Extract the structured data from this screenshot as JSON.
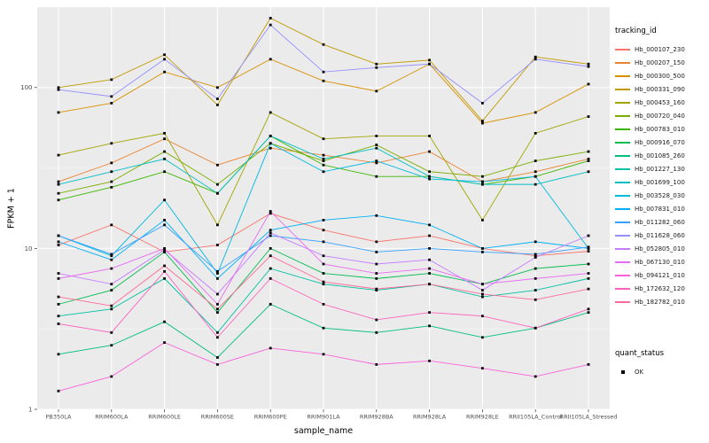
{
  "figure": {
    "bg": "#FFFFFF",
    "panel_bg": "#EBEBEB",
    "grid_major_color": "#FFFFFF",
    "grid_minor_color": "#FFFFFF",
    "tick_color": "#333333",
    "tick_label_color": "#4D4D4D",
    "point_color": "#000000"
  },
  "chart_data": {
    "type": "line",
    "title": "",
    "xlabel": "sample_name",
    "ylabel": "FPKM + 1",
    "y_scale": "log10",
    "y_ticks": [
      1,
      10,
      100
    ],
    "ylim": [
      1,
      316.23
    ],
    "grid": true,
    "legend_position": "right",
    "categories": [
      "PB350LA",
      "RRIM600LA",
      "RRIM600LE",
      "RRIM600SE",
      "RRIM600PE",
      "RRIM901LA",
      "RRIM928BA",
      "RRIM928LA",
      "RRIM928LE",
      "RRII105LA_Control",
      "RRII105LA_Stressed"
    ],
    "legend": {
      "color_title": "tracking_id",
      "shape_title": "quant_status",
      "shape_items": [
        {
          "label": "OK",
          "shape": "square",
          "color": "#000000"
        }
      ]
    },
    "series": [
      {
        "name": "Hb_000107_230",
        "color": "#F8766D",
        "values": [
          10.5,
          14,
          9.5,
          10.5,
          16.5,
          13,
          11,
          12,
          10,
          9,
          9.6
        ]
      },
      {
        "name": "Hb_000207_150",
        "color": "#EA8331",
        "values": [
          26,
          34,
          48,
          33,
          42,
          38,
          34,
          40,
          26,
          30,
          36
        ]
      },
      {
        "name": "Hb_000300_500",
        "color": "#D89000",
        "values": [
          70,
          80,
          125,
          100,
          150,
          110,
          95,
          140,
          60,
          70,
          105
        ]
      },
      {
        "name": "Hb_000331_090",
        "color": "#C09B00",
        "values": [
          100,
          112,
          160,
          78,
          270,
          185,
          140,
          148,
          62,
          155,
          140
        ]
      },
      {
        "name": "Hb_000453_160",
        "color": "#A3A500",
        "values": [
          38,
          45,
          52,
          14,
          70,
          48,
          50,
          50,
          15,
          52,
          66
        ]
      },
      {
        "name": "Hb_000720_040",
        "color": "#7CAE00",
        "values": [
          22,
          26,
          40,
          25,
          45,
          35,
          44,
          30,
          28,
          35,
          40
        ]
      },
      {
        "name": "Hb_000783_010",
        "color": "#39B600",
        "values": [
          20,
          24,
          30,
          22,
          50,
          33,
          28,
          28,
          25,
          28,
          35
        ]
      },
      {
        "name": "Hb_000916_070",
        "color": "#00BB4E",
        "values": [
          4.5,
          5.5,
          9.5,
          4,
          10,
          7,
          6.5,
          7,
          6,
          7.5,
          8
        ]
      },
      {
        "name": "Hb_001085_260",
        "color": "#00BF7D",
        "values": [
          2.2,
          2.5,
          3.5,
          2.1,
          4.5,
          3.2,
          3,
          3.3,
          2.8,
          3.2,
          4
        ]
      },
      {
        "name": "Hb_001227_130",
        "color": "#00C1A3",
        "values": [
          3.8,
          4.2,
          6.5,
          3,
          7.5,
          6,
          5.5,
          6,
          5,
          5.5,
          6.5
        ]
      },
      {
        "name": "Hb_001699_100",
        "color": "#00BFC4",
        "values": [
          25,
          30,
          36,
          22,
          50,
          36,
          42,
          28,
          25,
          25,
          30
        ]
      },
      {
        "name": "Hb_003528_030",
        "color": "#00BAE0",
        "values": [
          12,
          9,
          20,
          7,
          45,
          30,
          35,
          27,
          26,
          28,
          10
        ]
      },
      {
        "name": "Hb_007831_010",
        "color": "#00B0F6",
        "values": [
          11,
          8.5,
          15,
          6.5,
          13,
          15,
          16,
          14,
          10,
          11,
          10
        ]
      },
      {
        "name": "Hb_011282_060",
        "color": "#35A2FF",
        "values": [
          12,
          9.2,
          14,
          7.2,
          12,
          11,
          9.5,
          10,
          9.5,
          9.2,
          10.2
        ]
      },
      {
        "name": "Hb_011628_060",
        "color": "#9590FF",
        "values": [
          97,
          88,
          150,
          85,
          245,
          125,
          133,
          140,
          80,
          150,
          135
        ]
      },
      {
        "name": "Hb_052805_010",
        "color": "#C77CFF",
        "values": [
          7,
          6,
          9.8,
          5.2,
          12.5,
          9,
          8,
          8.5,
          5.5,
          8.8,
          12
        ]
      },
      {
        "name": "Hb_067130_010",
        "color": "#E76BF3",
        "values": [
          6.5,
          7.5,
          10,
          4.5,
          17,
          8,
          7,
          7.5,
          6,
          6.5,
          7
        ]
      },
      {
        "name": "Hb_094121_010",
        "color": "#FA62DB",
        "values": [
          1.3,
          1.6,
          2.6,
          1.9,
          2.4,
          2.2,
          1.9,
          2,
          1.8,
          1.6,
          1.9
        ]
      },
      {
        "name": "Hb_172632_120",
        "color": "#FF62BC",
        "values": [
          3.4,
          3,
          7.2,
          2.8,
          6.5,
          4.5,
          3.6,
          4,
          3.8,
          3.2,
          4.2
        ]
      },
      {
        "name": "Hb_182782_010",
        "color": "#FF6A98",
        "values": [
          5,
          4.4,
          7.8,
          4.2,
          9,
          6.2,
          5.6,
          6,
          5.2,
          4.8,
          5.6
        ]
      }
    ]
  }
}
